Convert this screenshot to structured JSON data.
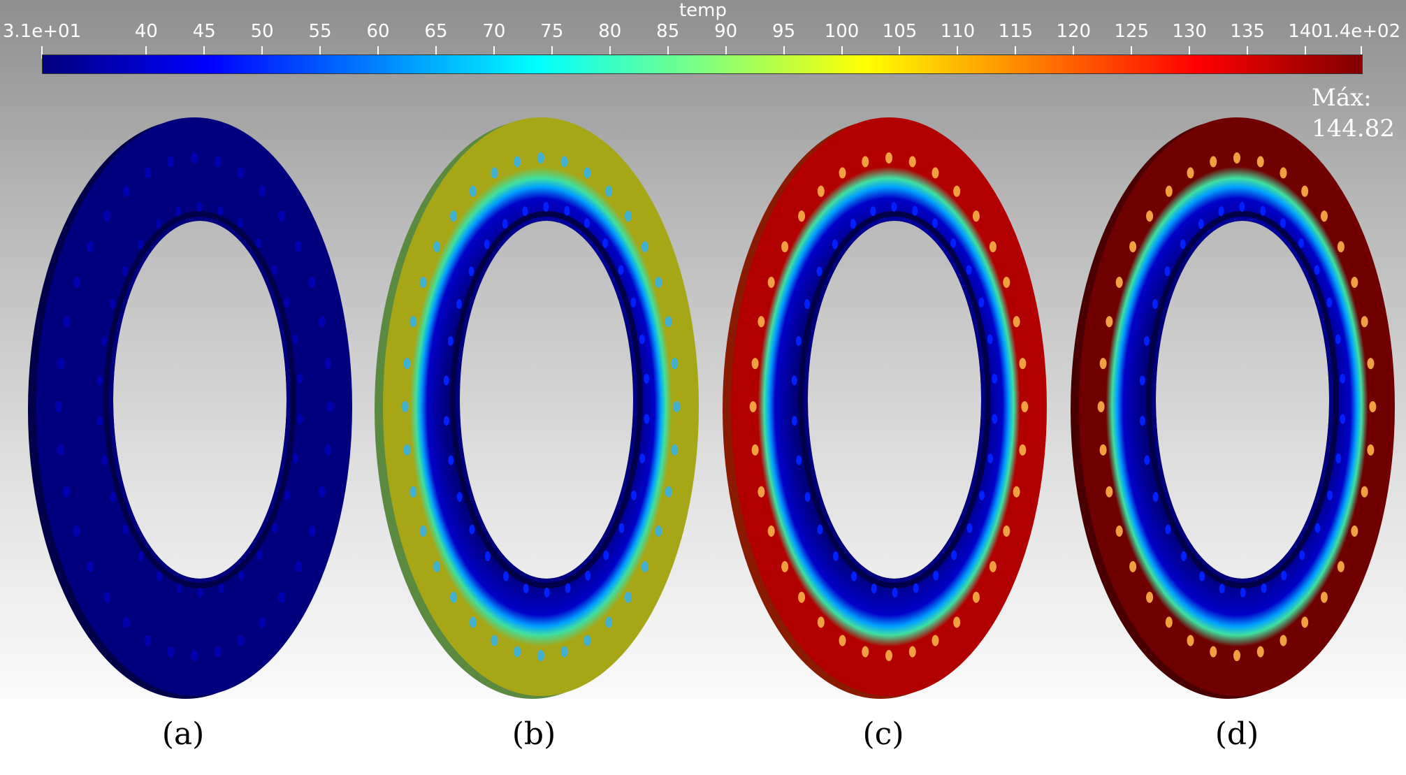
{
  "colorbar": {
    "title": "temp",
    "min_label": "3.1e+01",
    "max_label": "1.4e+02",
    "ticks": [
      "40",
      "45",
      "50",
      "55",
      "60",
      "65",
      "70",
      "75",
      "80",
      "85",
      "90",
      "95",
      "100",
      "105",
      "110",
      "115",
      "120",
      "125",
      "130",
      "135",
      "140"
    ],
    "range": [
      31,
      144.82
    ]
  },
  "max_annotation": {
    "label": "Máx:",
    "value": "144.82"
  },
  "panels": [
    {
      "label": "(a)",
      "outer_color": "#00007f",
      "inner_band": "#00007f"
    },
    {
      "label": "(b)",
      "outer_color": "#a6a617",
      "inner_band": "#00007f"
    },
    {
      "label": "(c)",
      "outer_color": "#b20000",
      "inner_band": "#00007f"
    },
    {
      "label": "(d)",
      "outer_color": "#700000",
      "inner_band": "#00007f"
    }
  ]
}
